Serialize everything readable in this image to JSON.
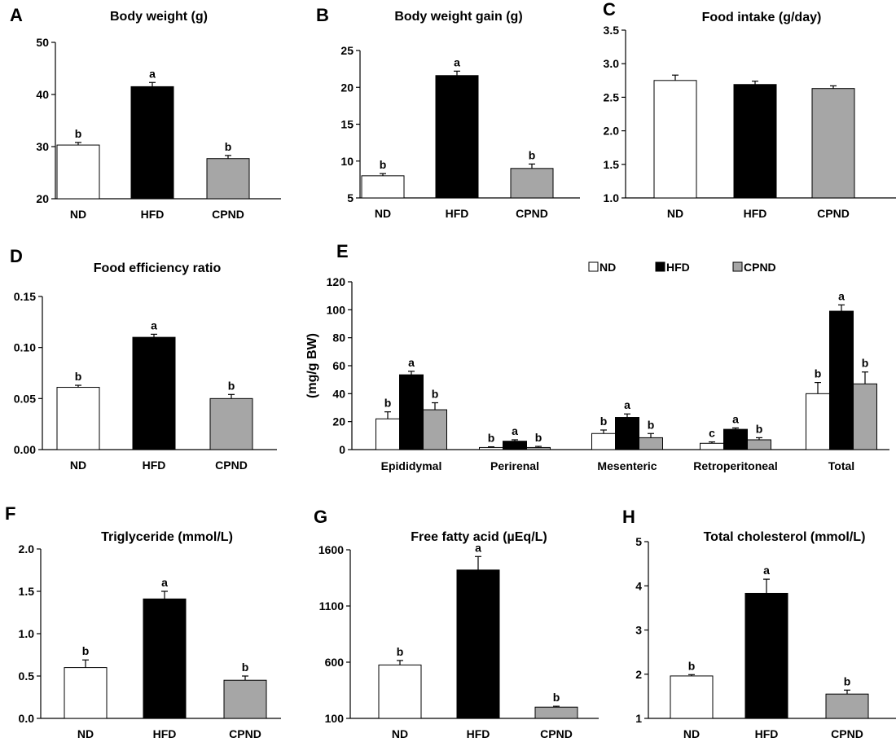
{
  "colors": {
    "ND": "#ffffff",
    "HFD": "#000000",
    "CPND": "#a6a6a6",
    "axis": "#000000"
  },
  "chart_data": [
    {
      "id": "A",
      "letter": "A",
      "type": "bar",
      "title": "Body weight (g)",
      "ylabel": "",
      "ylim": [
        20,
        50
      ],
      "yticks": [
        20,
        30,
        40,
        50
      ],
      "ytick_labels": [
        "20",
        "30",
        "40",
        "50"
      ],
      "categories": [
        "ND",
        "HFD",
        "CPND"
      ],
      "values": [
        30.3,
        41.5,
        27.7
      ],
      "errors": [
        0.5,
        0.8,
        0.6
      ],
      "sig": [
        "b",
        "a",
        "b"
      ]
    },
    {
      "id": "B",
      "letter": "B",
      "type": "bar",
      "title": "Body weight gain (g)",
      "ylabel": "",
      "ylim": [
        5,
        25
      ],
      "yticks": [
        5,
        10,
        15,
        20,
        25
      ],
      "ytick_labels": [
        "5",
        "10",
        "15",
        "20",
        "25"
      ],
      "categories": [
        "ND",
        "HFD",
        "CPND"
      ],
      "values": [
        8.0,
        21.6,
        9.0
      ],
      "errors": [
        0.3,
        0.6,
        0.6
      ],
      "sig": [
        "b",
        "a",
        "b"
      ]
    },
    {
      "id": "C",
      "letter": "C",
      "type": "bar",
      "title": "Food intake (g/day)",
      "ylabel": "",
      "ylim": [
        1.0,
        3.5
      ],
      "yticks": [
        1.0,
        1.5,
        2.0,
        2.5,
        3.0,
        3.5
      ],
      "ytick_labels": [
        "1.0",
        "1.5",
        "2.0",
        "2.5",
        "3.0",
        "3.5"
      ],
      "categories": [
        "ND",
        "HFD",
        "CPND"
      ],
      "values": [
        2.75,
        2.69,
        2.63
      ],
      "errors": [
        0.08,
        0.05,
        0.04
      ],
      "sig": [
        "",
        "",
        ""
      ]
    },
    {
      "id": "D",
      "letter": "D",
      "type": "bar",
      "title": "Food efficiency ratio",
      "ylabel": "",
      "ylim": [
        0,
        0.15
      ],
      "yticks": [
        0,
        0.05,
        0.1,
        0.15
      ],
      "ytick_labels": [
        "0.00",
        "0.05",
        "0.10",
        "0.15"
      ],
      "categories": [
        "ND",
        "HFD",
        "CPND"
      ],
      "values": [
        0.061,
        0.11,
        0.05
      ],
      "errors": [
        0.002,
        0.003,
        0.004
      ],
      "sig": [
        "b",
        "a",
        "b"
      ]
    },
    {
      "id": "E",
      "letter": "E",
      "type": "bar",
      "title": "",
      "ylabel": "(mg/g BW)",
      "ylim": [
        0,
        120
      ],
      "yticks": [
        0,
        20,
        40,
        60,
        80,
        100,
        120
      ],
      "ytick_labels": [
        "0",
        "20",
        "40",
        "60",
        "80",
        "100",
        "120"
      ],
      "categories": [
        "Epididymal",
        "Perirenal",
        "Mesenteric",
        "Retroperitoneal",
        "Total"
      ],
      "series": [
        {
          "name": "ND",
          "values": [
            22,
            1.5,
            11.5,
            4.5,
            40
          ],
          "errors": [
            5,
            0.5,
            2.5,
            1,
            8
          ],
          "sig": [
            "b",
            "b",
            "b",
            "c",
            "b"
          ]
        },
        {
          "name": "HFD",
          "values": [
            53.5,
            6,
            23,
            14.5,
            99
          ],
          "errors": [
            2.5,
            1,
            2.5,
            1,
            4.5
          ],
          "sig": [
            "a",
            "a",
            "a",
            "a",
            "a"
          ]
        },
        {
          "name": "CPND",
          "values": [
            28.5,
            1.5,
            8.5,
            7,
            47
          ],
          "errors": [
            5,
            0.8,
            3,
            1.5,
            8.5
          ],
          "sig": [
            "b",
            "b",
            "b",
            "b",
            "b"
          ]
        }
      ],
      "legend": [
        "ND",
        "HFD",
        "CPND"
      ],
      "legend_position": "top-right"
    },
    {
      "id": "F",
      "letter": "F",
      "type": "bar",
      "title": "Triglyceride (mmol/L)",
      "ylabel": "",
      "ylim": [
        0,
        2.0
      ],
      "yticks": [
        0,
        0.5,
        1.0,
        1.5,
        2.0
      ],
      "ytick_labels": [
        "0.0",
        "0.5",
        "1.0",
        "1.5",
        "2.0"
      ],
      "categories": [
        "ND",
        "HFD",
        "CPND"
      ],
      "values": [
        0.6,
        1.41,
        0.45
      ],
      "errors": [
        0.09,
        0.09,
        0.05
      ],
      "sig": [
        "b",
        "a",
        "b"
      ]
    },
    {
      "id": "G",
      "letter": "G",
      "type": "bar",
      "title": "Free fatty acid (µEq/L)",
      "ylabel": "",
      "ylim": [
        100,
        1600
      ],
      "yticks": [
        100,
        600,
        1100,
        1600
      ],
      "ytick_labels": [
        "100",
        "600",
        "1100",
        "1600"
      ],
      "categories": [
        "ND",
        "HFD",
        "CPND"
      ],
      "values": [
        575,
        1420,
        200
      ],
      "errors": [
        40,
        120,
        8
      ],
      "sig": [
        "b",
        "a",
        "b"
      ]
    },
    {
      "id": "H",
      "letter": "H",
      "type": "bar",
      "title": "Total cholesterol (mmol/L)",
      "ylabel": "",
      "ylim": [
        1,
        5
      ],
      "yticks": [
        1,
        2,
        3,
        4,
        5
      ],
      "ytick_labels": [
        "1",
        "2",
        "3",
        "4",
        "5"
      ],
      "categories": [
        "ND",
        "HFD",
        "CPND"
      ],
      "values": [
        1.96,
        3.83,
        1.55
      ],
      "errors": [
        0.03,
        0.32,
        0.09
      ],
      "sig": [
        "b",
        "a",
        "b"
      ]
    }
  ]
}
